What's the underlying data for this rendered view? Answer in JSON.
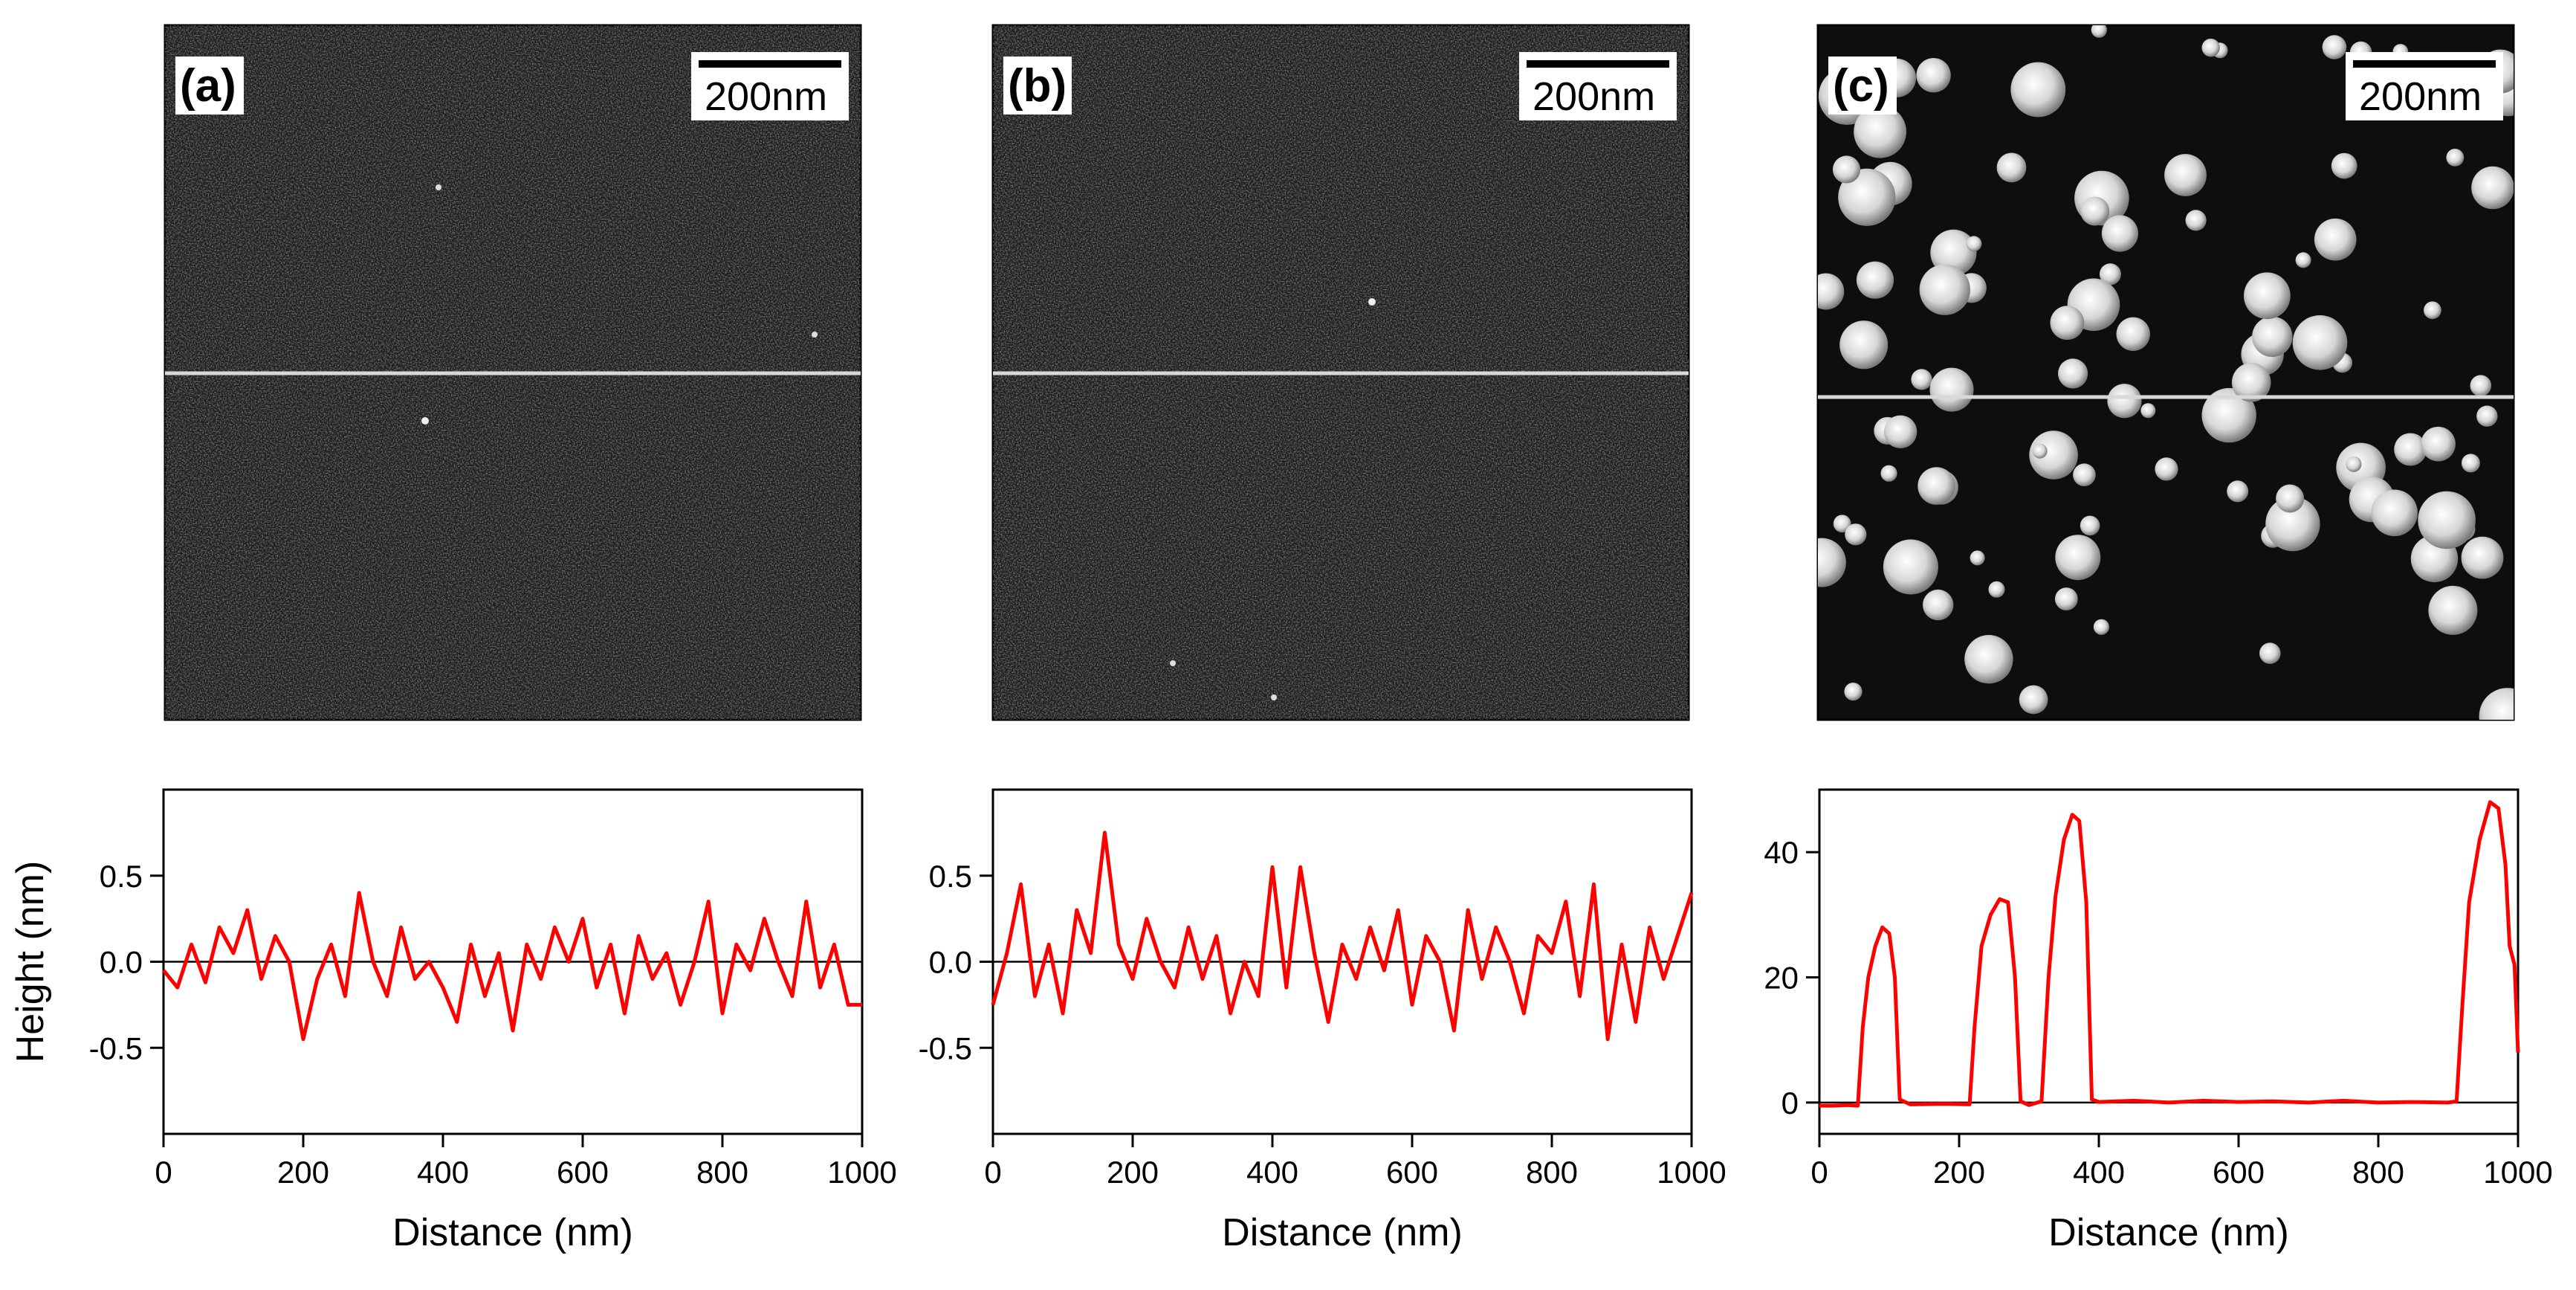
{
  "figure": {
    "scale_bar_label": "200nm",
    "panels": [
      {
        "label": "(a)",
        "surface": "flat"
      },
      {
        "label": "(b)",
        "surface": "flat"
      },
      {
        "label": "(c)",
        "surface": "particles"
      }
    ]
  },
  "colors": {
    "profile_line": "#ff0000",
    "scan_line": "#d8d8d8",
    "axis": "#000000"
  },
  "chart_data": [
    {
      "type": "line",
      "panel": "(a)",
      "title": "",
      "xlabel": "Distance (nm)",
      "ylabel": "Height (nm)",
      "xlim": [
        0,
        1000
      ],
      "ylim": [
        -1.0,
        1.0
      ],
      "xticks": [
        0,
        200,
        400,
        600,
        800,
        1000
      ],
      "yticks": [
        -0.5,
        0.0,
        0.5
      ],
      "ytick_labels": [
        "-0.5",
        "0.0",
        "0.5"
      ],
      "zero_line": true,
      "series": [
        {
          "name": "height profile",
          "x": [
            0,
            20,
            40,
            60,
            80,
            100,
            120,
            140,
            160,
            180,
            200,
            220,
            240,
            260,
            280,
            300,
            320,
            340,
            360,
            380,
            400,
            420,
            440,
            460,
            480,
            500,
            520,
            540,
            560,
            580,
            600,
            620,
            640,
            660,
            680,
            700,
            720,
            740,
            760,
            780,
            800,
            820,
            840,
            860,
            880,
            900,
            920,
            940,
            960,
            980,
            1000
          ],
          "y": [
            -0.05,
            -0.15,
            0.1,
            -0.12,
            0.2,
            0.05,
            0.3,
            -0.1,
            0.15,
            0.0,
            -0.45,
            -0.1,
            0.1,
            -0.2,
            0.4,
            0.0,
            -0.2,
            0.2,
            -0.1,
            0.0,
            -0.15,
            -0.35,
            0.1,
            -0.2,
            0.05,
            -0.4,
            0.1,
            -0.1,
            0.2,
            0.0,
            0.25,
            -0.15,
            0.1,
            -0.3,
            0.15,
            -0.1,
            0.05,
            -0.25,
            0.0,
            0.35,
            -0.3,
            0.1,
            -0.05,
            0.25,
            0.0,
            -0.2,
            0.35,
            -0.15,
            0.1,
            -0.25,
            -0.25
          ]
        }
      ]
    },
    {
      "type": "line",
      "panel": "(b)",
      "title": "",
      "xlabel": "Distance (nm)",
      "ylabel": "",
      "xlim": [
        0,
        1000
      ],
      "ylim": [
        -1.0,
        1.0
      ],
      "xticks": [
        0,
        200,
        400,
        600,
        800,
        1000
      ],
      "yticks": [
        -0.5,
        0.0,
        0.5
      ],
      "ytick_labels": [
        "-0.5",
        "0.0",
        "0.5"
      ],
      "zero_line": true,
      "series": [
        {
          "name": "height profile",
          "x": [
            0,
            20,
            40,
            60,
            80,
            100,
            120,
            140,
            160,
            180,
            200,
            220,
            240,
            260,
            280,
            300,
            320,
            340,
            360,
            380,
            400,
            420,
            440,
            460,
            480,
            500,
            520,
            540,
            560,
            580,
            600,
            620,
            640,
            660,
            680,
            700,
            720,
            740,
            760,
            780,
            800,
            820,
            840,
            860,
            880,
            900,
            920,
            940,
            960,
            980,
            1000
          ],
          "y": [
            -0.25,
            0.05,
            0.45,
            -0.2,
            0.1,
            -0.3,
            0.3,
            0.05,
            0.75,
            0.1,
            -0.1,
            0.25,
            0.0,
            -0.15,
            0.2,
            -0.1,
            0.15,
            -0.3,
            0.0,
            -0.2,
            0.55,
            -0.15,
            0.55,
            0.05,
            -0.35,
            0.1,
            -0.1,
            0.2,
            -0.05,
            0.3,
            -0.25,
            0.15,
            0.0,
            -0.4,
            0.3,
            -0.1,
            0.2,
            0.0,
            -0.3,
            0.15,
            0.05,
            0.35,
            -0.2,
            0.45,
            -0.45,
            0.1,
            -0.35,
            0.2,
            -0.1,
            0.15,
            0.4
          ]
        }
      ]
    },
    {
      "type": "line",
      "panel": "(c)",
      "title": "",
      "xlabel": "Distance (nm)",
      "ylabel": "",
      "xlim": [
        0,
        1000
      ],
      "ylim": [
        -5,
        50
      ],
      "xticks": [
        0,
        200,
        400,
        600,
        800,
        1000
      ],
      "yticks": [
        0,
        20,
        40
      ],
      "ytick_labels": [
        "0",
        "20",
        "40"
      ],
      "zero_line": true,
      "series": [
        {
          "name": "height profile",
          "x": [
            0,
            20,
            40,
            55,
            62,
            70,
            80,
            90,
            100,
            108,
            115,
            130,
            180,
            215,
            222,
            232,
            245,
            258,
            270,
            280,
            288,
            300,
            318,
            328,
            338,
            350,
            362,
            372,
            382,
            390,
            400,
            450,
            500,
            550,
            600,
            650,
            700,
            750,
            800,
            850,
            900,
            912,
            920,
            930,
            945,
            960,
            972,
            982,
            988,
            995,
            1000
          ],
          "y": [
            -0.5,
            -0.5,
            -0.4,
            -0.5,
            12,
            20,
            25,
            28,
            27,
            20,
            0.5,
            -0.3,
            -0.2,
            -0.3,
            12,
            25,
            30,
            32.5,
            32,
            20,
            0.2,
            -0.4,
            0.2,
            20,
            33,
            42,
            46,
            45,
            32,
            0.5,
            0.1,
            0.3,
            0.0,
            0.3,
            0.1,
            0.2,
            0.0,
            0.3,
            0.0,
            0.1,
            0.0,
            0.2,
            15,
            32,
            42,
            48,
            47,
            38,
            25,
            22,
            8
          ]
        }
      ]
    }
  ]
}
